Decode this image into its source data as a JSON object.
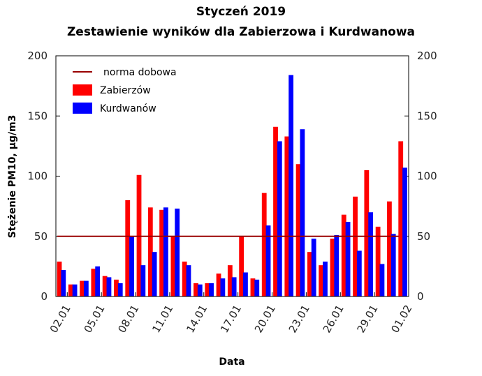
{
  "chart_data": {
    "type": "bar",
    "title": "Styczeń 2019",
    "subtitle": "Zestawienie wyników dla Zabierzowa i Kurdwanowa",
    "xlabel": "Data",
    "ylabel": "Stężenie PM10, µg/m3",
    "ylim": [
      0,
      200
    ],
    "yticks": [
      0,
      50,
      100,
      150,
      200
    ],
    "xtick_labels": [
      "02.01",
      "05.01",
      "08.01",
      "11.01",
      "14.01",
      "17.01",
      "20.01",
      "23.01",
      "26.01",
      "29.01",
      "01.02"
    ],
    "xtick_days": [
      2,
      5,
      8,
      11,
      14,
      17,
      20,
      23,
      26,
      29,
      32
    ],
    "days": [
      1,
      2,
      3,
      4,
      5,
      6,
      7,
      8,
      9,
      10,
      11,
      12,
      13,
      14,
      15,
      16,
      17,
      18,
      19,
      20,
      21,
      22,
      23,
      24,
      25,
      26,
      27,
      28,
      29,
      30,
      31
    ],
    "series": [
      {
        "name": "Zabierzów",
        "color": "#ff0000",
        "values": [
          29,
          10,
          13,
          23,
          17,
          14,
          80,
          101,
          74,
          72,
          50,
          29,
          11,
          11,
          19,
          26,
          50,
          15,
          86,
          141,
          133,
          110,
          37,
          26,
          48,
          68,
          83,
          105,
          58,
          79,
          129
        ]
      },
      {
        "name": "Kurdwanów",
        "color": "#0000ff",
        "values": [
          22,
          10,
          13,
          25,
          16,
          11,
          50,
          26,
          37,
          74,
          73,
          26,
          10,
          11,
          15,
          16,
          20,
          14,
          59,
          129,
          184,
          139,
          48,
          29,
          51,
          62,
          38,
          70,
          27,
          52,
          107
        ]
      }
    ],
    "norm_line": {
      "name": "norma dobowa",
      "value": 50,
      "color": "#990000"
    },
    "legend_placement": "top-left",
    "grid": false,
    "right_axis": true
  }
}
